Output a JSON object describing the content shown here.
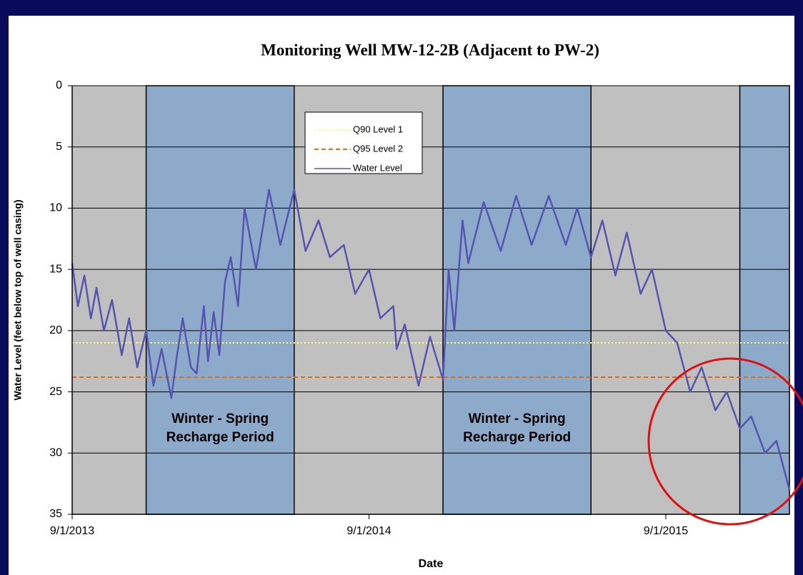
{
  "chart_data": {
    "type": "line",
    "title": "Monitoring Well MW-12-2B (Adjacent to PW-2)",
    "x_label": "Date",
    "y_label": "Water Level (feet below top of well casing)",
    "xlim": [
      "9/1/2013",
      "1/31/2016"
    ],
    "xticks": [
      "9/1/2013",
      "9/1/2014",
      "9/1/2015"
    ],
    "ylim": [
      0,
      35
    ],
    "yticks": [
      0,
      5,
      10,
      15,
      20,
      25,
      30,
      35
    ],
    "y_inverted": true,
    "grid": true,
    "plot_background": "#c0c0c0",
    "shaded_regions": [
      {
        "start": "12/1/2013",
        "end": "6/1/2014",
        "color": "#8eaacb",
        "label": [
          "Winter - Spring",
          "Recharge Period"
        ]
      },
      {
        "start": "12/1/2014",
        "end": "6/1/2015",
        "color": "#8eaacb",
        "label": [
          "Winter - Spring",
          "Recharge Period"
        ]
      },
      {
        "start": "12/1/2015",
        "end": "1/31/2016",
        "color": "#8eaacb"
      }
    ],
    "reference_lines": [
      {
        "name": "Q90 Level 1",
        "value": 21,
        "color": "#ffff66",
        "style": "dotted"
      },
      {
        "name": "Q95 Level 2",
        "value": 23.8,
        "color": "#e46c0a",
        "style": "dashed"
      }
    ],
    "series": [
      {
        "name": "Water Level",
        "color": "#5555b0",
        "x": [
          "9/1/2013",
          "9/8/2013",
          "9/16/2013",
          "9/24/2013",
          "10/1/2013",
          "10/10/2013",
          "10/20/2013",
          "11/1/2013",
          "11/10/2013",
          "11/20/2013",
          "12/1/2013",
          "12/10/2013",
          "12/20/2013",
          "1/1/2014",
          "1/8/2014",
          "1/15/2014",
          "1/25/2014",
          "2/1/2014",
          "2/10/2014",
          "2/15/2014",
          "2/22/2014",
          "3/1/2014",
          "3/8/2014",
          "3/15/2014",
          "3/24/2014",
          "4/1/2014",
          "4/15/2014",
          "5/1/2014",
          "5/15/2014",
          "6/1/2014",
          "6/15/2014",
          "7/1/2014",
          "7/15/2014",
          "8/1/2014",
          "8/15/2014",
          "9/1/2014",
          "9/15/2014",
          "10/1/2014",
          "10/5/2014",
          "10/15/2014",
          "11/1/2014",
          "11/15/2014",
          "12/1/2014",
          "12/8/2014",
          "12/15/2014",
          "12/25/2014",
          "1/1/2015",
          "1/20/2015",
          "2/10/2015",
          "3/1/2015",
          "3/20/2015",
          "4/10/2015",
          "5/1/2015",
          "5/15/2015",
          "6/1/2015",
          "6/15/2015",
          "7/1/2015",
          "7/15/2015",
          "8/1/2015",
          "8/15/2015",
          "9/1/2015",
          "9/15/2015",
          "10/1/2015",
          "10/15/2015",
          "11/1/2015",
          "11/15/2015",
          "12/1/2015",
          "12/15/2015",
          "1/1/2016",
          "1/15/2016",
          "1/31/2016"
        ],
        "values": [
          14.5,
          18,
          15.5,
          19,
          16.5,
          20,
          17.5,
          22,
          19,
          23,
          20,
          24.5,
          21.5,
          25.5,
          22,
          19,
          23,
          23.5,
          18,
          22.5,
          18.5,
          22,
          16,
          14,
          18,
          10,
          15,
          8.5,
          13,
          8.5,
          13.5,
          11,
          14,
          13,
          17,
          15,
          19,
          18,
          21.5,
          19.5,
          24.5,
          20.5,
          24,
          15,
          20,
          11,
          14.5,
          9.5,
          13.5,
          9,
          13,
          9,
          13,
          10,
          14,
          11,
          15.5,
          12,
          17,
          15,
          20,
          21,
          25,
          23,
          26.5,
          25,
          28,
          27,
          30,
          29,
          33
        ]
      }
    ]
  }
}
